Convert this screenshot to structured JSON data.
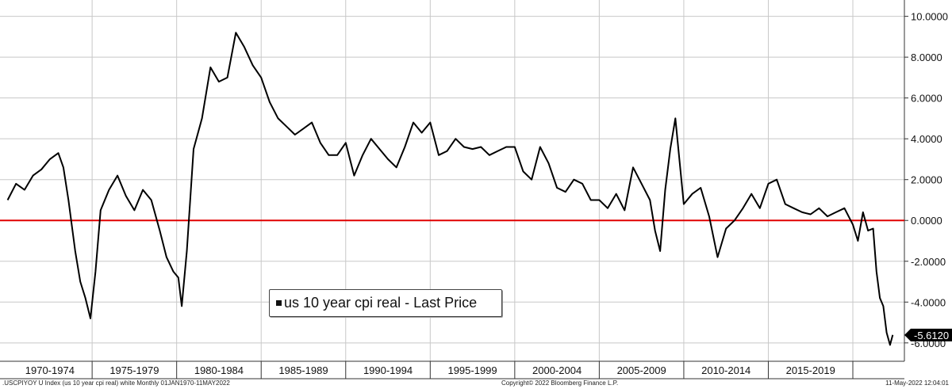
{
  "chart_data": {
    "type": "line",
    "title": "",
    "xlabel": "",
    "ylabel": "",
    "ylim": [
      -6.9,
      10.8
    ],
    "x_period_labels": [
      "1970-1974",
      "1975-1979",
      "1980-1984",
      "1985-1989",
      "1990-1994",
      "1995-1999",
      "2000-2004",
      "2005-2009",
      "2010-2014",
      "2015-2019"
    ],
    "y_ticks": [
      -6,
      -4,
      -2,
      0,
      2,
      4,
      6,
      8,
      10
    ],
    "y_tick_labels": [
      "-6.0000",
      "-4.0000",
      "-2.0000",
      "0.0000",
      "2.0000",
      "4.0000",
      "6.0000",
      "8.0000",
      "10.0000"
    ],
    "legend": "us 10 year cpi real - Last Price",
    "legend_position": "bottom-center",
    "grid": true,
    "zero_line_color": "#e00000",
    "series_color": "#000000",
    "last_price_label": "-5.6120",
    "series": [
      {
        "name": "us 10 year cpi real",
        "x": [
          1970.0,
          1970.5,
          1971.0,
          1971.5,
          1972.0,
          1972.5,
          1973.0,
          1973.3,
          1973.6,
          1974.0,
          1974.3,
          1974.6,
          1974.9,
          1975.2,
          1975.5,
          1976.0,
          1976.5,
          1977.0,
          1977.5,
          1978.0,
          1978.5,
          1979.0,
          1979.4,
          1979.8,
          1980.1,
          1980.3,
          1980.6,
          1981.0,
          1981.5,
          1982.0,
          1982.5,
          1983.0,
          1983.5,
          1984.0,
          1984.5,
          1985.0,
          1985.5,
          1986.0,
          1986.5,
          1987.0,
          1987.5,
          1988.0,
          1988.5,
          1989.0,
          1989.5,
          1990.0,
          1990.5,
          1991.0,
          1991.5,
          1992.0,
          1992.5,
          1993.0,
          1993.5,
          1994.0,
          1994.5,
          1995.0,
          1995.5,
          1996.0,
          1996.5,
          1997.0,
          1997.5,
          1998.0,
          1998.5,
          1999.0,
          1999.5,
          2000.0,
          2000.5,
          2001.0,
          2001.5,
          2002.0,
          2002.5,
          2003.0,
          2003.5,
          2004.0,
          2004.5,
          2005.0,
          2005.5,
          2006.0,
          2006.5,
          2007.0,
          2007.5,
          2008.0,
          2008.3,
          2008.6,
          2008.9,
          2009.2,
          2009.5,
          2010.0,
          2010.5,
          2011.0,
          2011.5,
          2012.0,
          2012.5,
          2013.0,
          2013.5,
          2014.0,
          2014.5,
          2015.0,
          2015.5,
          2016.0,
          2016.5,
          2017.0,
          2017.5,
          2018.0,
          2018.5,
          2019.0,
          2019.5,
          2020.0,
          2020.3,
          2020.6,
          2020.9,
          2021.2,
          2021.4,
          2021.6,
          2021.8,
          2022.0,
          2022.2,
          2022.36
        ],
        "values": [
          1.0,
          1.8,
          1.5,
          2.2,
          2.5,
          3.0,
          3.3,
          2.6,
          1.0,
          -1.5,
          -3.0,
          -3.8,
          -4.8,
          -2.5,
          0.5,
          1.5,
          2.2,
          1.2,
          0.5,
          1.5,
          1.0,
          -0.5,
          -1.8,
          -2.5,
          -2.8,
          -4.2,
          -1.5,
          3.5,
          5.0,
          7.5,
          6.8,
          7.0,
          9.2,
          8.5,
          7.6,
          7.0,
          5.8,
          5.0,
          4.6,
          4.2,
          4.5,
          4.8,
          3.8,
          3.2,
          3.2,
          3.8,
          2.2,
          3.2,
          4.0,
          3.5,
          3.0,
          2.6,
          3.6,
          4.8,
          4.3,
          4.8,
          3.2,
          3.4,
          4.0,
          3.6,
          3.5,
          3.6,
          3.2,
          3.4,
          3.6,
          3.6,
          2.4,
          2.0,
          3.6,
          2.8,
          1.6,
          1.4,
          2.0,
          1.8,
          1.0,
          1.0,
          0.6,
          1.3,
          0.5,
          2.6,
          1.8,
          1.0,
          -0.5,
          -1.5,
          1.5,
          3.5,
          5.0,
          0.8,
          1.3,
          1.6,
          0.2,
          -1.8,
          -0.4,
          0.0,
          0.6,
          1.3,
          0.6,
          1.8,
          2.0,
          0.8,
          0.6,
          0.4,
          0.3,
          0.6,
          0.2,
          0.4,
          0.6,
          -0.2,
          -1.0,
          0.4,
          -0.5,
          -0.4,
          -2.5,
          -3.8,
          -4.2,
          -5.5,
          -6.1,
          -5.612
        ]
      }
    ]
  },
  "footer": {
    "left": ".USCPIYOY U Index (us 10 year cpi real) white  Monthly 01JAN1970-11MAY2022",
    "center": "Copyright© 2022 Bloomberg Finance L.P.",
    "right": "11-May-2022 12:04:01"
  }
}
